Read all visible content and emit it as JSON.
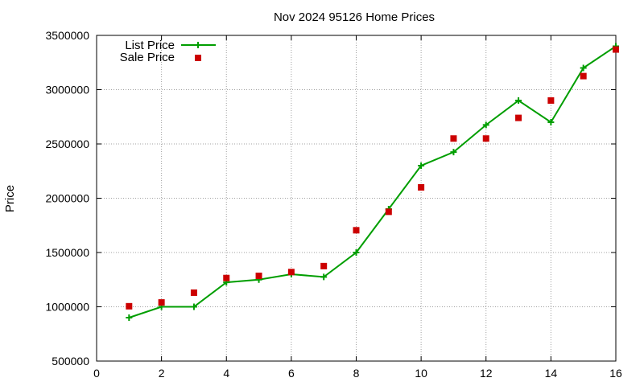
{
  "chart_data": {
    "type": "line",
    "title": "Nov 2024 95126 Home Prices",
    "xlabel": "",
    "ylabel": "Price",
    "xlim": [
      0,
      16
    ],
    "ylim": [
      500000,
      3500000
    ],
    "xticks": [
      0,
      2,
      4,
      6,
      8,
      10,
      12,
      14,
      16
    ],
    "yticks": [
      500000,
      1000000,
      1500000,
      2000000,
      2500000,
      3000000,
      3500000
    ],
    "grid": true,
    "legend_position": "top-left",
    "series": [
      {
        "name": "List Price",
        "style": "line-with-plus-markers",
        "color": "#009e00",
        "x": [
          1,
          2,
          3,
          4,
          5,
          6,
          7,
          8,
          9,
          10,
          11,
          12,
          13,
          14,
          15,
          16
        ],
        "y": [
          900000,
          1000000,
          1000000,
          1225000,
          1250000,
          1300000,
          1275000,
          1500000,
          1900000,
          2300000,
          2425000,
          2675000,
          2900000,
          2700000,
          3200000,
          3400000
        ]
      },
      {
        "name": "Sale Price",
        "style": "square-markers",
        "color": "#cc0000",
        "x": [
          1,
          2,
          3,
          4,
          5,
          6,
          7,
          8,
          9,
          10,
          11,
          12,
          13,
          14,
          15,
          16
        ],
        "y": [
          1005000,
          1040000,
          1130000,
          1265000,
          1285000,
          1320000,
          1375000,
          1705000,
          1875000,
          2100000,
          2550000,
          2550000,
          2740000,
          2900000,
          3125000,
          3370000
        ]
      }
    ]
  }
}
